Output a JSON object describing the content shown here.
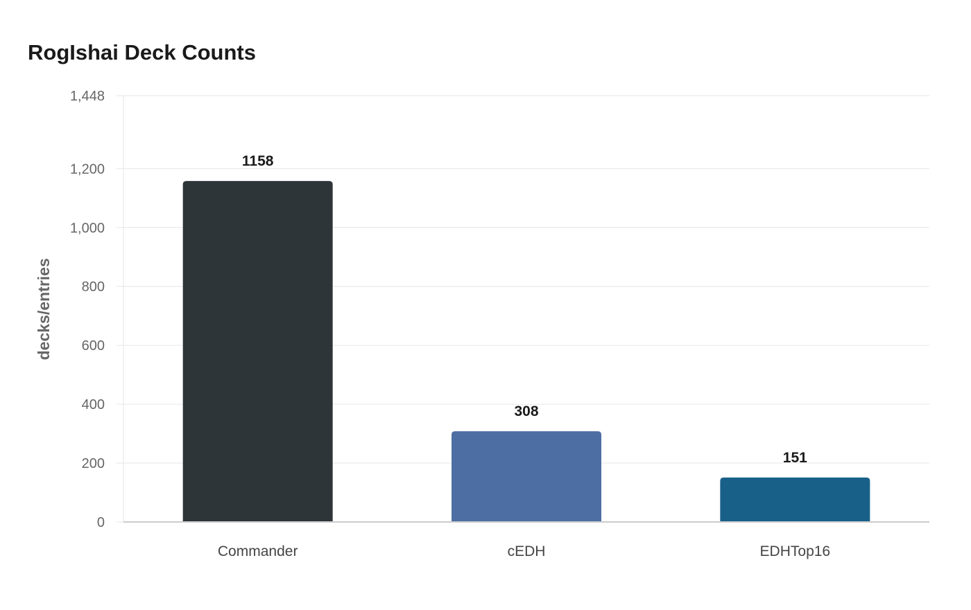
{
  "chart_data": {
    "type": "bar",
    "title": "RogIshai Deck Counts",
    "xlabel": "",
    "ylabel": "decks/entries",
    "categories": [
      "Commander",
      "cEDH",
      "EDHTop16"
    ],
    "values": [
      1158,
      308,
      151
    ],
    "data_labels": [
      "1158",
      "308",
      "151"
    ],
    "colors": [
      "#2e3538",
      "#4c6ea2",
      "#186088"
    ],
    "ylim": [
      0,
      1448
    ],
    "yticks": [
      0,
      200,
      400,
      600,
      800,
      1000,
      1200,
      1448
    ],
    "ytick_labels": [
      "0",
      "200",
      "400",
      "600",
      "800",
      "1,000",
      "1,200",
      "1,448"
    ],
    "grid": true,
    "legend": "none"
  }
}
